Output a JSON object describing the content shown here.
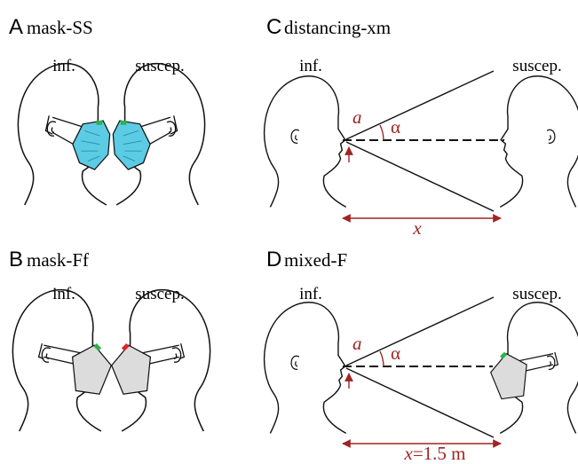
{
  "panels": [
    {
      "letter": "A",
      "title": "mask-SS",
      "infected": "inf.",
      "susceptible": "suscep."
    },
    {
      "letter": "B",
      "title": "mask-Ff",
      "infected": "inf.",
      "susceptible": "suscep."
    },
    {
      "letter": "C",
      "title": "distancing-xm",
      "infected": "inf.",
      "susceptible": "suscep.",
      "mouth_label": "a",
      "angle_label": "α",
      "distance_var": "x"
    },
    {
      "letter": "D",
      "title": "mixed-F",
      "infected": "inf.",
      "susceptible": "suscep.",
      "mouth_label": "a",
      "angle_label": "α",
      "distance_var": "x",
      "distance_value": "=1.5 m"
    }
  ]
}
